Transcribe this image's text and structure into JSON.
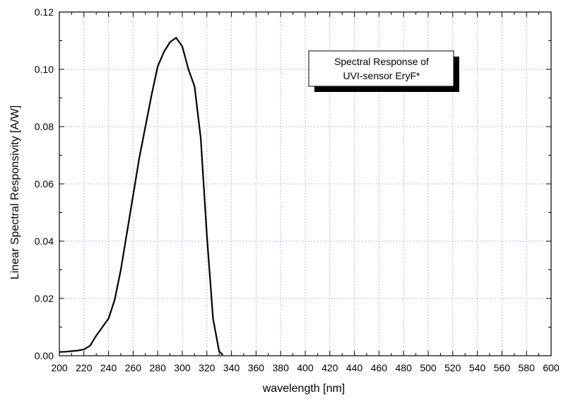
{
  "chart_data": {
    "type": "line",
    "title": "",
    "xlabel": "wavelength [nm]",
    "ylabel": "Linear Spectral Responsivity [A/W]",
    "xlim": [
      200,
      600
    ],
    "ylim": [
      0,
      0.12
    ],
    "x_ticks": [
      "200",
      "220",
      "240",
      "260",
      "280",
      "300",
      "320",
      "340",
      "360",
      "380",
      "400",
      "420",
      "440",
      "460",
      "480",
      "500",
      "520",
      "540",
      "560",
      "580",
      "600"
    ],
    "y_ticks": [
      "0.00",
      "0.02",
      "0.04",
      "0.06",
      "0.08",
      "0.10",
      "0.12"
    ],
    "grid": true,
    "annotation": {
      "line1": "Spectral Response of",
      "line2": "UVI-sensor EryF*"
    },
    "series": [
      {
        "x": [
          200,
          205,
          210,
          215,
          220,
          225,
          230,
          235,
          240,
          245,
          250,
          255,
          260,
          265,
          270,
          275,
          280,
          285,
          290,
          295,
          300,
          305,
          310,
          315,
          320,
          325,
          330,
          333
        ],
        "y": [
          0.0013,
          0.0014,
          0.0016,
          0.0018,
          0.0022,
          0.0035,
          0.007,
          0.01,
          0.013,
          0.0195,
          0.03,
          0.043,
          0.056,
          0.069,
          0.08,
          0.091,
          0.101,
          0.106,
          0.1095,
          0.111,
          0.108,
          0.1,
          0.094,
          0.076,
          0.042,
          0.013,
          0.0015,
          0.0003
        ]
      }
    ]
  },
  "colors": {
    "line": "#000000",
    "grid": "#b8b8e8",
    "axis": "#000000",
    "box_shadow": "#000000"
  }
}
